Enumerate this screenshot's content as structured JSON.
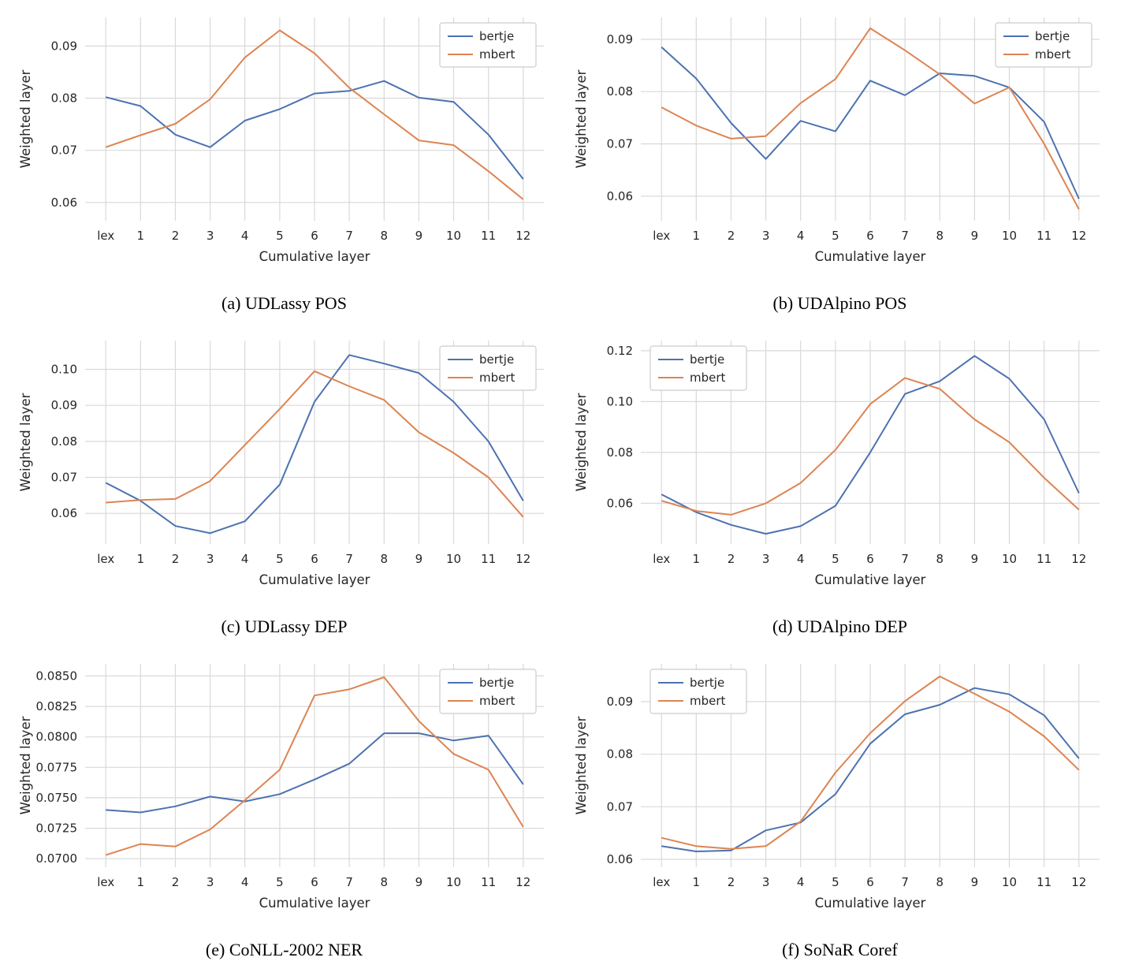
{
  "colors": {
    "bertje": "#4C72B0",
    "mbert": "#DD8452",
    "grid": "#d9d9d9",
    "text": "#262626",
    "legend_border": "#cccccc"
  },
  "chart_data": [
    {
      "id": "a",
      "type": "line",
      "caption": "(a) UDLassy POS",
      "xlabel": "Cumulative layer",
      "ylabel": "Weighted layer",
      "categories": [
        "lex",
        "1",
        "2",
        "3",
        "4",
        "5",
        "6",
        "7",
        "8",
        "9",
        "10",
        "11",
        "12"
      ],
      "ylim": [
        0.0565,
        0.0955
      ],
      "ytick_values": [
        0.06,
        0.07,
        0.08,
        0.09
      ],
      "ytick_labels": [
        "0.06",
        "0.07",
        "0.08",
        "0.09"
      ],
      "legend_position": "top-right",
      "legend_entries": [
        "bertje",
        "mbert"
      ],
      "series": [
        {
          "name": "bertje",
          "color_key": "bertje",
          "values": [
            0.0802,
            0.0785,
            0.073,
            0.0706,
            0.0757,
            0.0779,
            0.0809,
            0.0814,
            0.0833,
            0.0801,
            0.0793,
            0.073,
            0.0645
          ]
        },
        {
          "name": "mbert",
          "color_key": "mbert",
          "values": [
            0.0706,
            0.0729,
            0.0751,
            0.0798,
            0.0878,
            0.093,
            0.0886,
            0.082,
            0.0769,
            0.0719,
            0.071,
            0.066,
            0.0606
          ]
        }
      ]
    },
    {
      "id": "b",
      "type": "line",
      "caption": "(b) UDAlpino POS",
      "xlabel": "Cumulative layer",
      "ylabel": "Weighted layer",
      "categories": [
        "lex",
        "1",
        "2",
        "3",
        "4",
        "5",
        "6",
        "7",
        "8",
        "9",
        "10",
        "11",
        "12"
      ],
      "ylim": [
        0.0553,
        0.0942
      ],
      "ytick_values": [
        0.06,
        0.07,
        0.08,
        0.09
      ],
      "ytick_labels": [
        "0.06",
        "0.07",
        "0.08",
        "0.09"
      ],
      "legend_position": "top-right",
      "legend_entries": [
        "bertje",
        "mbert"
      ],
      "series": [
        {
          "name": "bertje",
          "color_key": "bertje",
          "values": [
            0.0885,
            0.0825,
            0.074,
            0.0671,
            0.0744,
            0.0724,
            0.0821,
            0.0793,
            0.0835,
            0.083,
            0.0808,
            0.0742,
            0.0595
          ]
        },
        {
          "name": "mbert",
          "color_key": "mbert",
          "values": [
            0.077,
            0.0735,
            0.071,
            0.0715,
            0.0778,
            0.0824,
            0.0921,
            0.0879,
            0.0833,
            0.0777,
            0.0808,
            0.07,
            0.0575
          ]
        }
      ]
    },
    {
      "id": "c",
      "type": "line",
      "caption": "(c) UDLassy DEP",
      "xlabel": "Cumulative layer",
      "ylabel": "Weighted layer",
      "categories": [
        "lex",
        "1",
        "2",
        "3",
        "4",
        "5",
        "6",
        "7",
        "8",
        "9",
        "10",
        "11",
        "12"
      ],
      "ylim": [
        0.0515,
        0.108
      ],
      "ytick_values": [
        0.06,
        0.07,
        0.08,
        0.09,
        0.1
      ],
      "ytick_labels": [
        "0.06",
        "0.07",
        "0.08",
        "0.09",
        "0.10"
      ],
      "legend_position": "top-right",
      "legend_entries": [
        "bertje",
        "mbert"
      ],
      "series": [
        {
          "name": "bertje",
          "color_key": "bertje",
          "values": [
            0.0685,
            0.0635,
            0.0565,
            0.0545,
            0.0578,
            0.068,
            0.091,
            0.104,
            0.1016,
            0.099,
            0.091,
            0.08,
            0.0635
          ]
        },
        {
          "name": "mbert",
          "color_key": "mbert",
          "values": [
            0.063,
            0.0637,
            0.064,
            0.069,
            0.079,
            0.089,
            0.0995,
            0.0953,
            0.0915,
            0.0825,
            0.0768,
            0.07,
            0.059
          ]
        }
      ]
    },
    {
      "id": "d",
      "type": "line",
      "caption": "(d) UDAlpino DEP",
      "xlabel": "Cumulative layer",
      "ylabel": "Weighted layer",
      "categories": [
        "lex",
        "1",
        "2",
        "3",
        "4",
        "5",
        "6",
        "7",
        "8",
        "9",
        "10",
        "11",
        "12"
      ],
      "ylim": [
        0.044,
        0.124
      ],
      "ytick_values": [
        0.06,
        0.08,
        0.1,
        0.12
      ],
      "ytick_labels": [
        "0.06",
        "0.08",
        "0.10",
        "0.12"
      ],
      "legend_position": "top-left",
      "legend_entries": [
        "bertje",
        "mbert"
      ],
      "series": [
        {
          "name": "bertje",
          "color_key": "bertje",
          "values": [
            0.0635,
            0.0565,
            0.0515,
            0.048,
            0.051,
            0.059,
            0.08,
            0.103,
            0.108,
            0.118,
            0.109,
            0.093,
            0.064
          ]
        },
        {
          "name": "mbert",
          "color_key": "mbert",
          "values": [
            0.061,
            0.057,
            0.0555,
            0.06,
            0.068,
            0.081,
            0.099,
            0.1093,
            0.105,
            0.093,
            0.084,
            0.07,
            0.0575
          ]
        }
      ]
    },
    {
      "id": "e",
      "type": "line",
      "caption": "(e) CoNLL-2002 NER",
      "xlabel": "Cumulative layer",
      "ylabel": "Weighted layer",
      "categories": [
        "lex",
        "1",
        "2",
        "3",
        "4",
        "5",
        "6",
        "7",
        "8",
        "9",
        "10",
        "11",
        "12"
      ],
      "ylim": [
        0.0693,
        0.086
      ],
      "ytick_values": [
        0.07,
        0.0725,
        0.075,
        0.0775,
        0.08,
        0.0825,
        0.085
      ],
      "ytick_labels": [
        "0.0700",
        "0.0725",
        "0.0750",
        "0.0775",
        "0.0800",
        "0.0825",
        "0.0850"
      ],
      "legend_position": "top-right",
      "legend_entries": [
        "bertje",
        "mbert"
      ],
      "series": [
        {
          "name": "bertje",
          "color_key": "bertje",
          "values": [
            0.074,
            0.0738,
            0.0743,
            0.0751,
            0.0747,
            0.0753,
            0.0765,
            0.0778,
            0.0803,
            0.0803,
            0.0797,
            0.0801,
            0.0761
          ]
        },
        {
          "name": "mbert",
          "color_key": "mbert",
          "values": [
            0.0703,
            0.0712,
            0.071,
            0.0724,
            0.0748,
            0.0773,
            0.0834,
            0.0839,
            0.0849,
            0.0813,
            0.0786,
            0.0773,
            0.0726
          ]
        }
      ]
    },
    {
      "id": "f",
      "type": "line",
      "caption": "(f) SoNaR Coref",
      "xlabel": "Cumulative layer",
      "ylabel": "Weighted layer",
      "categories": [
        "lex",
        "1",
        "2",
        "3",
        "4",
        "5",
        "6",
        "7",
        "8",
        "9",
        "10",
        "11",
        "12"
      ],
      "ylim": [
        0.0585,
        0.0972
      ],
      "ytick_values": [
        0.06,
        0.07,
        0.08,
        0.09
      ],
      "ytick_labels": [
        "0.06",
        "0.07",
        "0.08",
        "0.09"
      ],
      "legend_position": "top-left",
      "legend_entries": [
        "bertje",
        "mbert"
      ],
      "series": [
        {
          "name": "bertje",
          "color_key": "bertje",
          "values": [
            0.0625,
            0.0615,
            0.0617,
            0.0655,
            0.067,
            0.0724,
            0.082,
            0.0876,
            0.0894,
            0.0926,
            0.0914,
            0.0874,
            0.0792
          ]
        },
        {
          "name": "mbert",
          "color_key": "mbert",
          "values": [
            0.0641,
            0.0625,
            0.062,
            0.0625,
            0.0672,
            0.0765,
            0.084,
            0.0901,
            0.0948,
            0.0915,
            0.0881,
            0.0834,
            0.077
          ]
        }
      ]
    }
  ]
}
